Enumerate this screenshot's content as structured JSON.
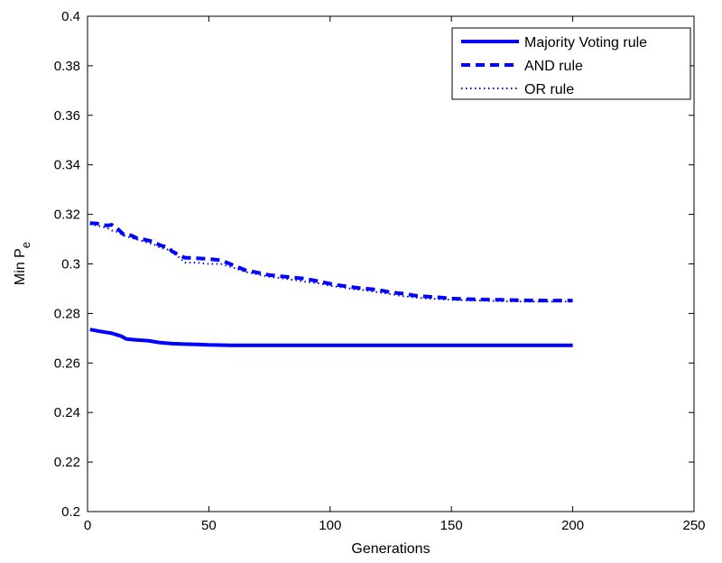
{
  "chart_data": {
    "type": "line",
    "title": "",
    "xlabel": "Generations",
    "ylabel": "Min P",
    "ylabel_subscript": "e",
    "xlim": [
      0,
      250
    ],
    "ylim": [
      0.2,
      0.4
    ],
    "xticks": [
      0,
      50,
      100,
      150,
      200,
      250
    ],
    "xtick_labels": [
      "0",
      "50",
      "100",
      "150",
      "200",
      "250"
    ],
    "yticks": [
      0.2,
      0.22,
      0.24,
      0.26,
      0.28,
      0.3,
      0.32,
      0.34,
      0.36,
      0.38,
      0.4
    ],
    "ytick_labels": [
      "0.2",
      "0.22",
      "0.24",
      "0.26",
      "0.28",
      "0.3",
      "0.32",
      "0.34",
      "0.36",
      "0.38",
      "0.4"
    ],
    "grid": false,
    "legend_position": "top-right",
    "series": [
      {
        "name": "Majority Voting rule",
        "color": "#0000ff",
        "style": "solid",
        "x": [
          1,
          5,
          10,
          14,
          16,
          20,
          25,
          30,
          35,
          40,
          45,
          50,
          55,
          60,
          80,
          100,
          120,
          150,
          180,
          200
        ],
        "y": [
          0.2735,
          0.2728,
          0.272,
          0.2708,
          0.2697,
          0.2693,
          0.269,
          0.2682,
          0.2678,
          0.2676,
          0.2675,
          0.2673,
          0.2672,
          0.2671,
          0.2671,
          0.2671,
          0.2671,
          0.2671,
          0.2671,
          0.2671
        ]
      },
      {
        "name": "AND rule",
        "color": "#0000ff",
        "style": "dashed",
        "x": [
          1,
          4,
          8,
          10,
          12,
          15,
          18,
          20,
          25,
          27,
          30,
          33,
          35,
          38,
          40,
          45,
          50,
          55,
          60,
          65,
          70,
          75,
          80,
          85,
          90,
          95,
          100,
          105,
          110,
          115,
          120,
          125,
          130,
          135,
          140,
          145,
          150,
          160,
          170,
          180,
          190,
          200
        ],
        "y": [
          0.3165,
          0.3163,
          0.3155,
          0.3158,
          0.3145,
          0.3118,
          0.3115,
          0.3105,
          0.3095,
          0.309,
          0.3075,
          0.3068,
          0.305,
          0.3035,
          0.3025,
          0.3023,
          0.302,
          0.3015,
          0.2995,
          0.2975,
          0.2965,
          0.2955,
          0.295,
          0.2945,
          0.294,
          0.293,
          0.292,
          0.2912,
          0.2905,
          0.29,
          0.2895,
          0.2885,
          0.288,
          0.2872,
          0.2868,
          0.2865,
          0.286,
          0.2857,
          0.2855,
          0.2853,
          0.2852,
          0.2852
        ]
      },
      {
        "name": "OR rule",
        "color": "#0000ff",
        "style": "dotted",
        "x": [
          1,
          4,
          8,
          10,
          12,
          15,
          18,
          20,
          25,
          27,
          30,
          33,
          35,
          38,
          40,
          45,
          50,
          55,
          60,
          65,
          70,
          75,
          80,
          85,
          90,
          95,
          100,
          105,
          110,
          115,
          120,
          125,
          130,
          135,
          140,
          145,
          150,
          160,
          170,
          180,
          190,
          200
        ],
        "y": [
          0.316,
          0.3155,
          0.3145,
          0.3135,
          0.313,
          0.3115,
          0.3105,
          0.31,
          0.3085,
          0.308,
          0.3065,
          0.3058,
          0.3045,
          0.3025,
          0.3005,
          0.3005,
          0.3,
          0.3,
          0.2985,
          0.2968,
          0.2958,
          0.2948,
          0.2942,
          0.2935,
          0.2928,
          0.2922,
          0.2912,
          0.2905,
          0.2898,
          0.2893,
          0.2885,
          0.2878,
          0.287,
          0.2865,
          0.286,
          0.2858,
          0.2855,
          0.2852,
          0.285,
          0.2848,
          0.2848,
          0.2848
        ]
      }
    ]
  }
}
